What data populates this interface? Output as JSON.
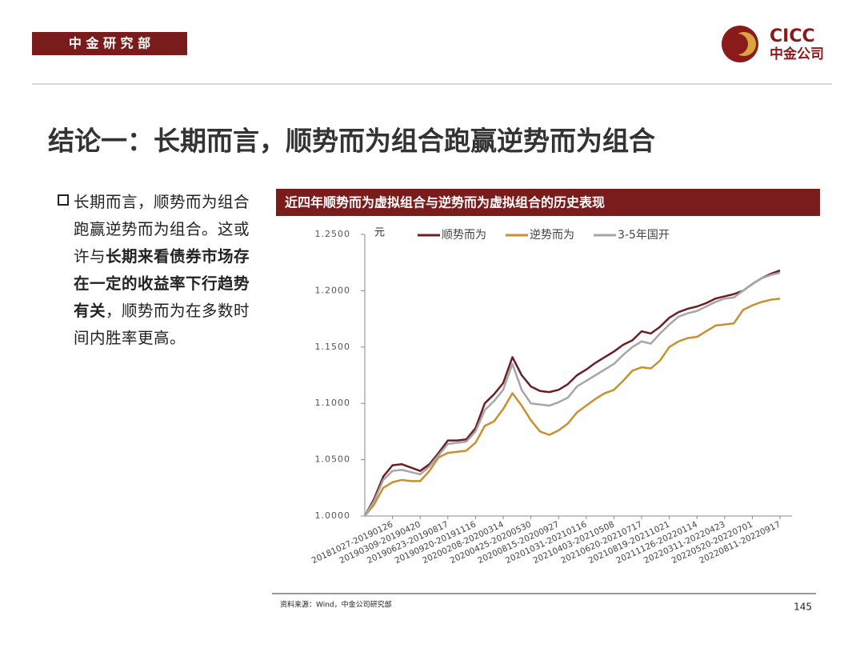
{
  "header": {
    "department": "中 金 研 究 部",
    "logo_en": "CICC",
    "logo_cn": "中金公司"
  },
  "slide": {
    "title": "结论一：长期而言，顺势而为组合跑赢逆势而为组合",
    "bullet": [
      {
        "text": "长期而言，顺势而为组合跑赢逆势而为组合。这或许与",
        "bold": false
      },
      {
        "text": "长期来看债券市场存在一定的收益率下行趋势有关",
        "bold": true
      },
      {
        "text": "，顺势而为在多数时间内胜率更高。",
        "bold": false
      }
    ],
    "source": "资料来源：Wind，中金公司研究部",
    "page": "145"
  },
  "chart_data": {
    "type": "line",
    "title": "近四年顺势而为虚拟组合与逆势而为虚拟组合的历史表现",
    "y_label": "元",
    "categories": [
      null,
      null,
      null,
      "20181027-20190126",
      null,
      null,
      "20190309-20190420",
      null,
      null,
      "20190623-20190817",
      null,
      null,
      "20190920-20191116",
      null,
      null,
      "20200208-20200314",
      null,
      null,
      "20200425-20200530",
      null,
      null,
      "20200815-20200927",
      null,
      null,
      "20201031-20210116",
      null,
      null,
      "20210403-20210508",
      null,
      null,
      "20210620-20210717",
      null,
      null,
      "20210819-20211021",
      null,
      null,
      "20211126-20220114",
      null,
      null,
      "20220311-20220423",
      null,
      null,
      "20220520-20220701",
      null,
      null,
      "20220811-20220917"
    ],
    "series": [
      {
        "name": "顺势而为",
        "color": "#6b1f24",
        "values": [
          1.0,
          1.015,
          1.035,
          1.045,
          1.046,
          1.043,
          1.04,
          1.046,
          1.056,
          1.067,
          1.067,
          1.068,
          1.078,
          1.1,
          1.108,
          1.118,
          1.141,
          1.125,
          1.115,
          1.111,
          1.11,
          1.112,
          1.117,
          1.125,
          1.13,
          1.136,
          1.141,
          1.146,
          1.152,
          1.156,
          1.164,
          1.162,
          1.168,
          1.176,
          1.181,
          1.184,
          1.186,
          1.189,
          1.193,
          1.195,
          1.197,
          1.2,
          1.206,
          1.211,
          1.215,
          1.218
        ]
      },
      {
        "name": "逆势而为",
        "color": "#c8902e",
        "values": [
          1.0,
          1.01,
          1.025,
          1.03,
          1.032,
          1.031,
          1.031,
          1.04,
          1.052,
          1.056,
          1.057,
          1.058,
          1.065,
          1.08,
          1.084,
          1.095,
          1.109,
          1.098,
          1.085,
          1.075,
          1.072,
          1.076,
          1.082,
          1.092,
          1.098,
          1.104,
          1.109,
          1.112,
          1.12,
          1.129,
          1.132,
          1.131,
          1.138,
          1.15,
          1.155,
          1.158,
          1.159,
          1.164,
          1.169,
          1.17,
          1.171,
          1.183,
          1.187,
          1.19,
          1.192,
          1.193
        ]
      },
      {
        "name": "3-5年国开",
        "color": "#a6a6a6",
        "values": [
          1.0,
          1.013,
          1.032,
          1.04,
          1.041,
          1.039,
          1.037,
          1.044,
          1.054,
          1.064,
          1.065,
          1.066,
          1.075,
          1.094,
          1.102,
          1.112,
          1.135,
          1.112,
          1.1,
          1.099,
          1.098,
          1.101,
          1.105,
          1.115,
          1.12,
          1.125,
          1.13,
          1.135,
          1.143,
          1.15,
          1.155,
          1.153,
          1.162,
          1.17,
          1.177,
          1.18,
          1.182,
          1.186,
          1.19,
          1.193,
          1.194,
          1.2,
          1.206,
          1.211,
          1.214,
          1.216
        ]
      }
    ],
    "ylim": [
      1.0,
      1.25
    ],
    "yticks": [
      {
        "value": 1.0,
        "label": "1.0000"
      },
      {
        "value": 1.05,
        "label": "1.0500"
      },
      {
        "value": 1.1,
        "label": "1.1000"
      },
      {
        "value": 1.15,
        "label": "1.1500"
      },
      {
        "value": 1.2,
        "label": "1.2000"
      },
      {
        "value": 1.25,
        "label": "1.2500"
      }
    ],
    "legend": "top",
    "grid": false
  }
}
